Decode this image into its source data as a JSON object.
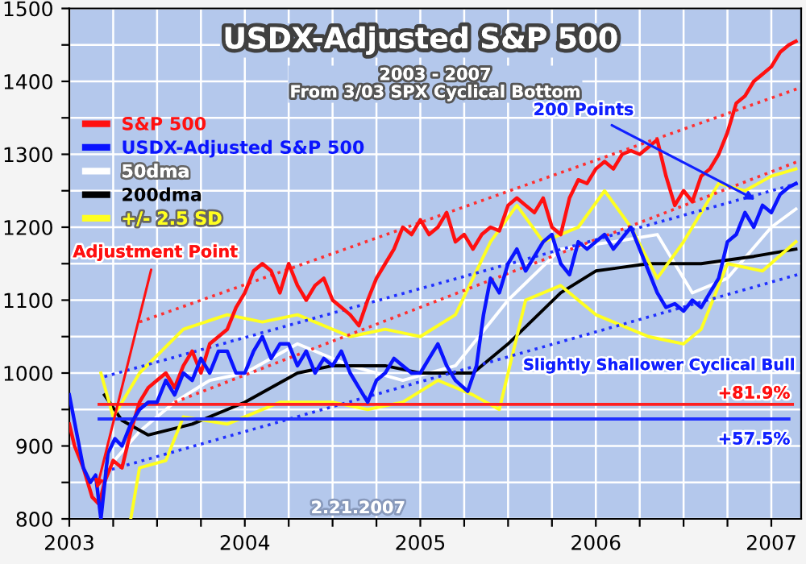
{
  "chart_data": {
    "type": "line",
    "title": "USDX-Adjusted S&P 500",
    "subtitle": "2003 - 2007\nFrom 3/03 SPX Cyclical Bottom",
    "xlim": [
      2003.0,
      2007.17
    ],
    "ylim": [
      800,
      1500
    ],
    "xticks": [
      {
        "value": 2003,
        "label": "2003"
      },
      {
        "value": 2003.25,
        "label": null
      },
      {
        "value": 2003.5,
        "label": null
      },
      {
        "value": 2003.75,
        "label": null
      },
      {
        "value": 2004,
        "label": "2004"
      },
      {
        "value": 2004.25,
        "label": null
      },
      {
        "value": 2004.5,
        "label": null
      },
      {
        "value": 2004.75,
        "label": null
      },
      {
        "value": 2005,
        "label": "2005"
      },
      {
        "value": 2005.25,
        "label": null
      },
      {
        "value": 2005.5,
        "label": null
      },
      {
        "value": 2005.75,
        "label": null
      },
      {
        "value": 2006,
        "label": "2006"
      },
      {
        "value": 2006.25,
        "label": null
      },
      {
        "value": 2006.5,
        "label": null
      },
      {
        "value": 2006.75,
        "label": null
      },
      {
        "value": 2007,
        "label": "2007"
      }
    ],
    "yticks": [
      800,
      {
        "value": 850,
        "label": null
      },
      900,
      {
        "value": 950,
        "label": null
      },
      1000,
      {
        "value": 1050,
        "label": null
      },
      1100,
      {
        "value": 1150,
        "label": null
      },
      1200,
      {
        "value": 1250,
        "label": null
      },
      1300,
      {
        "value": 1350,
        "label": null
      },
      1400,
      {
        "value": 1450,
        "label": null
      },
      1500
    ],
    "grid": true,
    "legend": "top left",
    "line_style": "solid",
    "series": [
      {
        "name": "S&P 500",
        "color": "#ff1010",
        "x": [
          2003.0,
          2003.03,
          2003.08,
          2003.13,
          2003.17,
          2003.2,
          2003.25,
          2003.3,
          2003.35,
          2003.4,
          2003.45,
          2003.5,
          2003.55,
          2003.6,
          2003.65,
          2003.7,
          2003.75,
          2003.8,
          2003.85,
          2003.9,
          2003.95,
          2004.0,
          2004.05,
          2004.1,
          2004.15,
          2004.2,
          2004.25,
          2004.3,
          2004.35,
          2004.4,
          2004.45,
          2004.5,
          2004.55,
          2004.6,
          2004.65,
          2004.7,
          2004.75,
          2004.8,
          2004.85,
          2004.9,
          2004.95,
          2005.0,
          2005.05,
          2005.1,
          2005.15,
          2005.2,
          2005.25,
          2005.3,
          2005.35,
          2005.4,
          2005.45,
          2005.5,
          2005.55,
          2005.6,
          2005.65,
          2005.7,
          2005.75,
          2005.8,
          2005.85,
          2005.9,
          2005.95,
          2006.0,
          2006.05,
          2006.1,
          2006.15,
          2006.2,
          2006.25,
          2006.3,
          2006.35,
          2006.4,
          2006.45,
          2006.5,
          2006.55,
          2006.6,
          2006.65,
          2006.7,
          2006.75,
          2006.8,
          2006.85,
          2006.9,
          2006.95,
          2007.0,
          2007.05,
          2007.1,
          2007.14
        ],
        "values": [
          930,
          900,
          870,
          830,
          820,
          850,
          880,
          870,
          920,
          960,
          980,
          990,
          1000,
          980,
          1010,
          1030,
          1000,
          1040,
          1050,
          1060,
          1090,
          1110,
          1140,
          1150,
          1140,
          1110,
          1150,
          1120,
          1100,
          1120,
          1130,
          1100,
          1090,
          1080,
          1065,
          1100,
          1130,
          1150,
          1170,
          1200,
          1190,
          1210,
          1190,
          1200,
          1220,
          1180,
          1190,
          1170,
          1190,
          1200,
          1195,
          1230,
          1240,
          1230,
          1220,
          1240,
          1200,
          1190,
          1240,
          1265,
          1260,
          1280,
          1290,
          1280,
          1300,
          1305,
          1300,
          1310,
          1320,
          1270,
          1230,
          1250,
          1235,
          1270,
          1280,
          1300,
          1330,
          1370,
          1380,
          1400,
          1410,
          1420,
          1440,
          1450,
          1455
        ]
      },
      {
        "name": "USDX-Adjusted S&P 500",
        "color": "#0a14ff",
        "x": [
          2003.0,
          2003.04,
          2003.08,
          2003.12,
          2003.15,
          2003.18,
          2003.22,
          2003.26,
          2003.3,
          2003.35,
          2003.4,
          2003.45,
          2003.5,
          2003.55,
          2003.6,
          2003.65,
          2003.7,
          2003.75,
          2003.8,
          2003.85,
          2003.9,
          2003.95,
          2004.0,
          2004.05,
          2004.1,
          2004.15,
          2004.2,
          2004.25,
          2004.3,
          2004.35,
          2004.4,
          2004.45,
          2004.5,
          2004.55,
          2004.6,
          2004.65,
          2004.7,
          2004.75,
          2004.8,
          2004.85,
          2004.9,
          2004.95,
          2005.0,
          2005.05,
          2005.1,
          2005.15,
          2005.2,
          2005.27,
          2005.32,
          2005.36,
          2005.4,
          2005.45,
          2005.5,
          2005.55,
          2005.6,
          2005.65,
          2005.7,
          2005.75,
          2005.8,
          2005.85,
          2005.9,
          2005.95,
          2006.0,
          2006.05,
          2006.1,
          2006.15,
          2006.2,
          2006.25,
          2006.3,
          2006.35,
          2006.4,
          2006.45,
          2006.5,
          2006.55,
          2006.6,
          2006.65,
          2006.7,
          2006.75,
          2006.8,
          2006.85,
          2006.9,
          2006.95,
          2007.0,
          2007.05,
          2007.1,
          2007.14
        ],
        "values": [
          970,
          920,
          870,
          850,
          860,
          800,
          890,
          910,
          900,
          930,
          950,
          960,
          960,
          990,
          970,
          1000,
          990,
          1020,
          1000,
          1030,
          1030,
          1000,
          1000,
          1030,
          1050,
          1020,
          1040,
          1040,
          1010,
          1030,
          1000,
          1020,
          1010,
          1030,
          1000,
          980,
          960,
          990,
          1000,
          1020,
          1010,
          1000,
          1000,
          1020,
          1040,
          1010,
          990,
          975,
          1010,
          1080,
          1130,
          1110,
          1150,
          1170,
          1140,
          1160,
          1180,
          1190,
          1150,
          1135,
          1180,
          1170,
          1180,
          1190,
          1170,
          1185,
          1200,
          1170,
          1140,
          1110,
          1090,
          1095,
          1085,
          1100,
          1090,
          1110,
          1130,
          1180,
          1190,
          1220,
          1200,
          1230,
          1220,
          1245,
          1255,
          1260
        ]
      },
      {
        "name": "50dma",
        "color": "#ffffff",
        "x": [
          2003.22,
          2003.4,
          2003.6,
          2003.8,
          2004.0,
          2004.3,
          2004.6,
          2004.9,
          2005.2,
          2005.5,
          2005.8,
          2006.1,
          2006.35,
          2006.55,
          2006.75,
          2007.0,
          2007.14
        ],
        "values": [
          870,
          920,
          960,
          990,
          1000,
          1040,
          1010,
          990,
          1010,
          1100,
          1170,
          1180,
          1190,
          1110,
          1130,
          1200,
          1225
        ]
      },
      {
        "name": "200dma",
        "color": "#000000",
        "x": [
          2003.2,
          2003.3,
          2003.45,
          2003.7,
          2004.0,
          2004.3,
          2004.5,
          2004.8,
          2005.0,
          2005.3,
          2005.5,
          2005.8,
          2006.0,
          2006.3,
          2006.6,
          2006.9,
          2007.14
        ],
        "values": [
          970,
          935,
          915,
          930,
          960,
          1000,
          1010,
          1010,
          1000,
          1000,
          1040,
          1110,
          1140,
          1150,
          1150,
          1160,
          1170
        ]
      },
      {
        "name": "+/- 2.5 SD",
        "color": "#ffff20",
        "x": [
          2003.18,
          2003.25,
          2003.4,
          2003.65,
          2003.9,
          2004.1,
          2004.3,
          2004.6,
          2004.8,
          2005.0,
          2005.2,
          2005.4,
          2005.55,
          2005.7,
          2005.9,
          2006.05,
          2006.2,
          2006.35,
          2006.5,
          2006.7,
          2006.85,
          2007.0,
          2007.14
        ],
        "values": [
          1000,
          940,
          1000,
          1060,
          1080,
          1070,
          1080,
          1050,
          1060,
          1050,
          1080,
          1180,
          1230,
          1180,
          1200,
          1250,
          1200,
          1130,
          1180,
          1260,
          1250,
          1270,
          1280
        ]
      },
      {
        "color": "#ffff20",
        "x": [
          2003.35,
          2003.4,
          2003.55,
          2003.65,
          2003.9,
          2004.2,
          2004.5,
          2004.7,
          2004.9,
          2005.1,
          2005.3,
          2005.45,
          2005.6,
          2005.8,
          2006.0,
          2006.3,
          2006.5,
          2006.6,
          2006.75,
          2006.95,
          2007.14
        ],
        "values": [
          800,
          870,
          880,
          940,
          930,
          960,
          960,
          950,
          960,
          990,
          970,
          950,
          1100,
          1120,
          1080,
          1050,
          1040,
          1060,
          1150,
          1140,
          1180
        ]
      },
      {
        "color": "#ff3030",
        "line_style": "dotted",
        "x": [
          2003.4,
          2007.15
        ],
        "values": [
          1070,
          1390
        ]
      },
      {
        "color": "#ff3030",
        "line_style": "dotted",
        "x": [
          2003.6,
          2007.15
        ],
        "values": [
          960,
          1290
        ]
      },
      {
        "color": "#2030ff",
        "line_style": "dotted",
        "x": [
          2003.2,
          2007.15
        ],
        "values": [
          995,
          1260
        ]
      },
      {
        "color": "#2030ff",
        "line_style": "dotted",
        "x": [
          2003.2,
          2007.15
        ],
        "values": [
          865,
          1135
        ]
      },
      {
        "color": "#ff2020",
        "x": [
          2003.17,
          2007.12
        ],
        "values": [
          957,
          957
        ]
      },
      {
        "color": "#2030ff",
        "x": [
          2003.17,
          2007.1
        ],
        "values": [
          937,
          937
        ]
      }
    ],
    "annotations": [
      {
        "text": "Adjustment Point",
        "x": 2003.15,
        "y": 835
      },
      {
        "text": "200 Points",
        "x": 2006.93,
        "y": 1235
      },
      "Slightly Shallower Cyclical Bull",
      "2.21.2007",
      "+81.9%",
      "+57.5%"
    ]
  }
}
